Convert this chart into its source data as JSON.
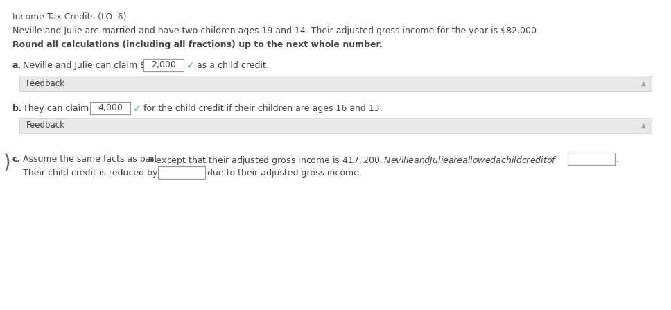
{
  "bg_color": "#ffffff",
  "title_line": "Income Tax Credits (LO. 6)",
  "intro_line": "Neville and Julie are married and have two children ages 19 and 14. Their adjusted gross income for the year is $82,000.",
  "bold_line": "Round all calculations (including all fractions) up to the next whole number.",
  "part_a_value": "2,000",
  "part_b_value": "4,000",
  "feedback_label": "Feedback",
  "feedback_bg": "#e8e8e8",
  "text_color": "#444444",
  "title_color": "#555555",
  "box_border": "#999999",
  "check_color": "#4caf50",
  "font_size": 9.0,
  "feedback_font_size": 8.5,
  "part_c_text1": "Assume the same facts as part ",
  "part_c_bold_a": "a",
  "part_c_text2": " except that their adjusted gross income is $417,200. Neville and Julie are allowed a child credit of $",
  "part_c_text3": "Their child credit is reduced by $",
  "part_c_text4": " due to their adjusted gross income."
}
